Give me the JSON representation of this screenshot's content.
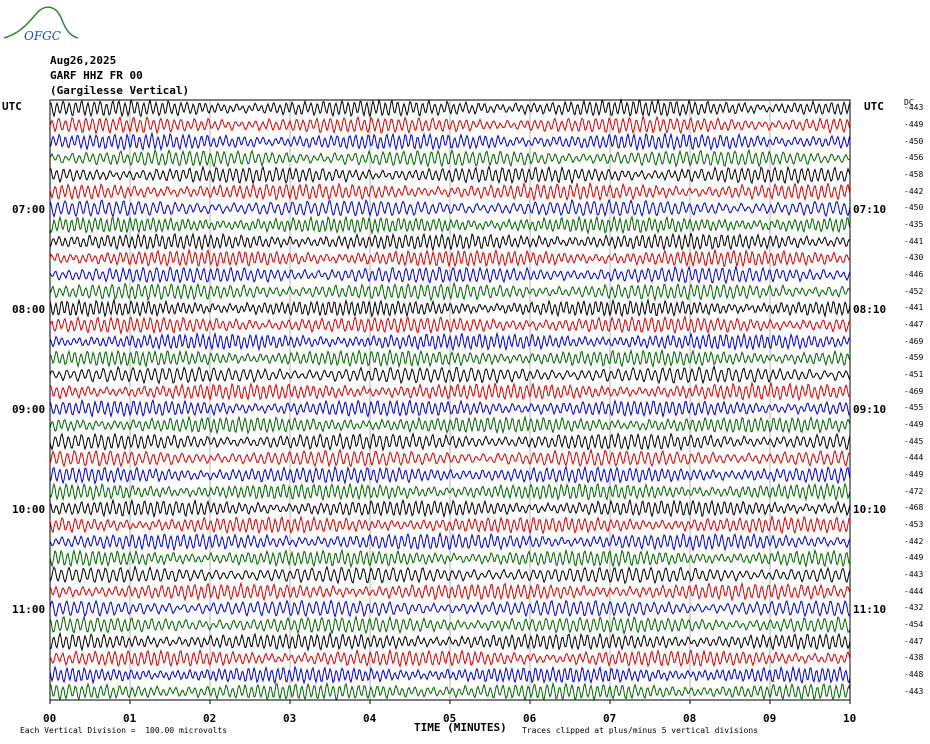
{
  "header": {
    "date": "Aug26,2025",
    "station": "GARF HHZ FR 00",
    "location": "(Gargilesse Vertical)",
    "logo_text": "OFGC"
  },
  "utc_label_left": "UTC",
  "utc_label_right": "UTC",
  "dc_label": "DC",
  "left_time_labels": [
    "07:00",
    "08:00",
    "09:00",
    "10:00",
    "11:00"
  ],
  "right_time_labels": [
    "07:10",
    "08:10",
    "09:10",
    "10:10",
    "11:10"
  ],
  "footer": {
    "x_title": "TIME (MINUTES)",
    "scale_note": "Each Vertical Division =  100.00 microvolts",
    "clip_note": "Traces clipped at plus/minus 5 vertical divisions"
  },
  "colors": {
    "trace_cycle": [
      "#000000",
      "#d40000",
      "#0000c8",
      "#006400"
    ],
    "grid": "#808080"
  },
  "chart_data": {
    "type": "line",
    "title": "GARF HHZ FR 00",
    "xlabel": "TIME (MINUTES)",
    "ylabel": "",
    "x_ticks": [
      "00",
      "01",
      "02",
      "03",
      "04",
      "05",
      "06",
      "07",
      "08",
      "09",
      "10"
    ],
    "xlim": [
      0,
      10
    ],
    "trace_count": 36,
    "minutes_per_trace": 10,
    "dc_offsets": [
      -443,
      -449,
      -450,
      -456,
      -458,
      -442,
      -450,
      -435,
      -441,
      -430,
      -446,
      -452,
      -441,
      -447,
      -469,
      -459,
      -451,
      -469,
      -455,
      -449,
      -445,
      -444,
      -449,
      -472,
      -468,
      -453,
      -442,
      -449,
      -443,
      -444,
      -432,
      -454,
      -447,
      -438,
      -448,
      -443
    ]
  }
}
